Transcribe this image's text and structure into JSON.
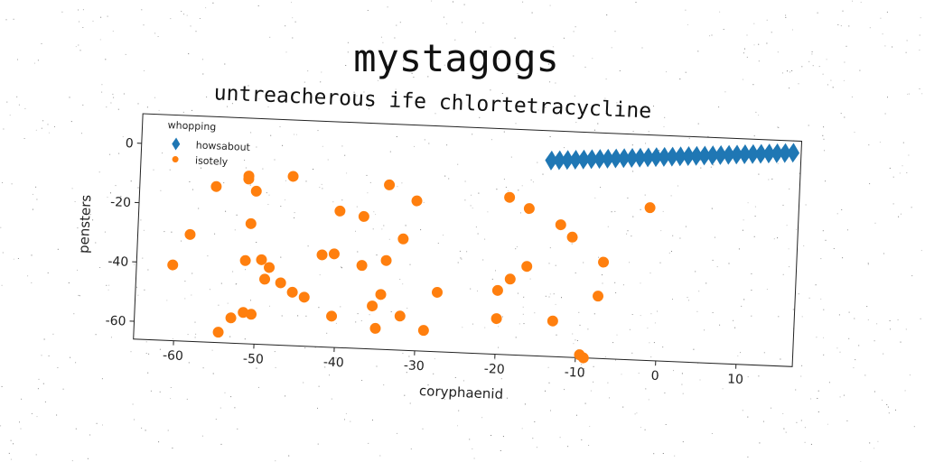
{
  "chart_data": {
    "type": "scatter",
    "title": "mystagogs",
    "subtitle": "untreacherous ife chlortetracycline",
    "xlabel": "coryphaenid",
    "ylabel": "pensters",
    "xlim": [
      -65,
      17
    ],
    "ylim": [
      -66,
      10
    ],
    "xticks": [
      "-60",
      "-50",
      "-40",
      "-30",
      "-20",
      "-10",
      "0",
      "10"
    ],
    "xtick_values": [
      -60,
      -50,
      -40,
      -30,
      -20,
      -10,
      0,
      10
    ],
    "yticks": [
      "0",
      "-20",
      "-40",
      "-60"
    ],
    "ytick_values": [
      0,
      -20,
      -40,
      -60
    ],
    "grid": false,
    "legend": {
      "title": "whopping",
      "position": "top-left"
    },
    "series": [
      {
        "name": "howsabout",
        "marker": "diamond",
        "color": "#1f77b4",
        "points": [
          [
            -14,
            0
          ],
          [
            -13,
            0.2
          ],
          [
            -12,
            0.4
          ],
          [
            -11,
            0.6
          ],
          [
            -10,
            0.8
          ],
          [
            -9,
            1.0
          ],
          [
            -8,
            1.2
          ],
          [
            -7,
            1.4
          ],
          [
            -6,
            1.6
          ],
          [
            -5,
            1.8
          ],
          [
            -4,
            2.0
          ],
          [
            -3,
            2.2
          ],
          [
            -2,
            2.4
          ],
          [
            -1,
            2.6
          ],
          [
            0,
            2.8
          ],
          [
            1,
            3.0
          ],
          [
            2,
            3.2
          ],
          [
            3,
            3.4
          ],
          [
            4,
            3.6
          ],
          [
            5,
            3.8
          ],
          [
            6,
            4.0
          ],
          [
            7,
            4.2
          ],
          [
            8,
            4.4
          ],
          [
            9,
            4.6
          ],
          [
            10,
            4.8
          ],
          [
            11,
            5.0
          ],
          [
            12,
            5.2
          ],
          [
            13,
            5.4
          ],
          [
            14,
            5.6
          ],
          [
            15,
            5.8
          ],
          [
            16,
            6.0
          ]
        ]
      },
      {
        "name": "isotely",
        "marker": "circle",
        "color": "#ff7f0e",
        "points": [
          [
            -60.5,
            -40.5
          ],
          [
            -58.5,
            -30
          ],
          [
            -55.5,
            -13.5
          ],
          [
            -54.5,
            -62.5
          ],
          [
            -53,
            -57.5
          ],
          [
            -51.5,
            -9.5
          ],
          [
            -51.5,
            -10.5
          ],
          [
            -51.5,
            -55.5
          ],
          [
            -51.5,
            -38
          ],
          [
            -51,
            -25.5
          ],
          [
            -50.5,
            -14.5
          ],
          [
            -50.5,
            -56
          ],
          [
            -49.5,
            -37.5
          ],
          [
            -49,
            -44
          ],
          [
            -48.5,
            -40
          ],
          [
            -47,
            -45
          ],
          [
            -46,
            -9
          ],
          [
            -45.5,
            -48
          ],
          [
            -44,
            -49.5
          ],
          [
            -42,
            -35
          ],
          [
            -40.5,
            -34.5
          ],
          [
            -40.5,
            -55.5
          ],
          [
            -40,
            -20
          ],
          [
            -37,
            -21.5
          ],
          [
            -37,
            -38
          ],
          [
            -35.5,
            -51.5
          ],
          [
            -35,
            -59
          ],
          [
            -34.5,
            -47.5
          ],
          [
            -34,
            -10.5
          ],
          [
            -34,
            -36
          ],
          [
            -32,
            -28.5
          ],
          [
            -32,
            -54.5
          ],
          [
            -30.5,
            -15.5
          ],
          [
            -29,
            -59
          ],
          [
            -27.5,
            -46
          ],
          [
            -20,
            -54
          ],
          [
            -20,
            -44.5
          ],
          [
            -19,
            -13
          ],
          [
            -18.5,
            -40.5
          ],
          [
            -16.5,
            -36
          ],
          [
            -16.5,
            -16.5
          ],
          [
            -13,
            -54
          ],
          [
            -12.5,
            -21.5
          ],
          [
            -11,
            -25.5
          ],
          [
            -9.5,
            -65
          ],
          [
            -9,
            -66
          ],
          [
            -7.5,
            -45
          ],
          [
            -7,
            -33.5
          ],
          [
            -1.5,
            -14.5
          ]
        ]
      }
    ]
  }
}
